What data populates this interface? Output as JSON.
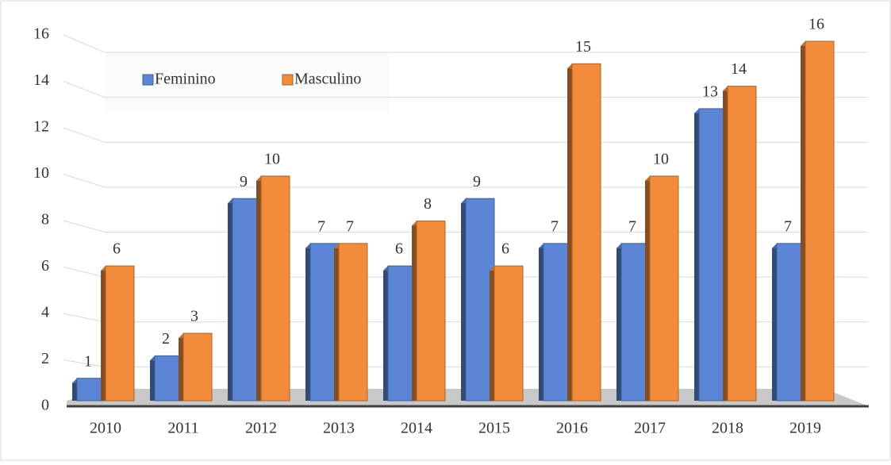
{
  "chart_data": {
    "type": "bar",
    "categories": [
      "2010",
      "2011",
      "2012",
      "2013",
      "2014",
      "2015",
      "2016",
      "2017",
      "2018",
      "2019"
    ],
    "series": [
      {
        "name": "Feminino",
        "color": "#5b86d6",
        "values": [
          1,
          2,
          9,
          7,
          6,
          9,
          7,
          7,
          13,
          7
        ]
      },
      {
        "name": "Masculino",
        "color": "#f28c3c",
        "values": [
          6,
          3,
          10,
          7,
          8,
          6,
          15,
          10,
          14,
          16
        ]
      }
    ],
    "ylim": [
      0,
      16
    ],
    "yticks": [
      0,
      2,
      4,
      6,
      8,
      10,
      12,
      14,
      16
    ],
    "grid": true,
    "legend": "top-left"
  }
}
